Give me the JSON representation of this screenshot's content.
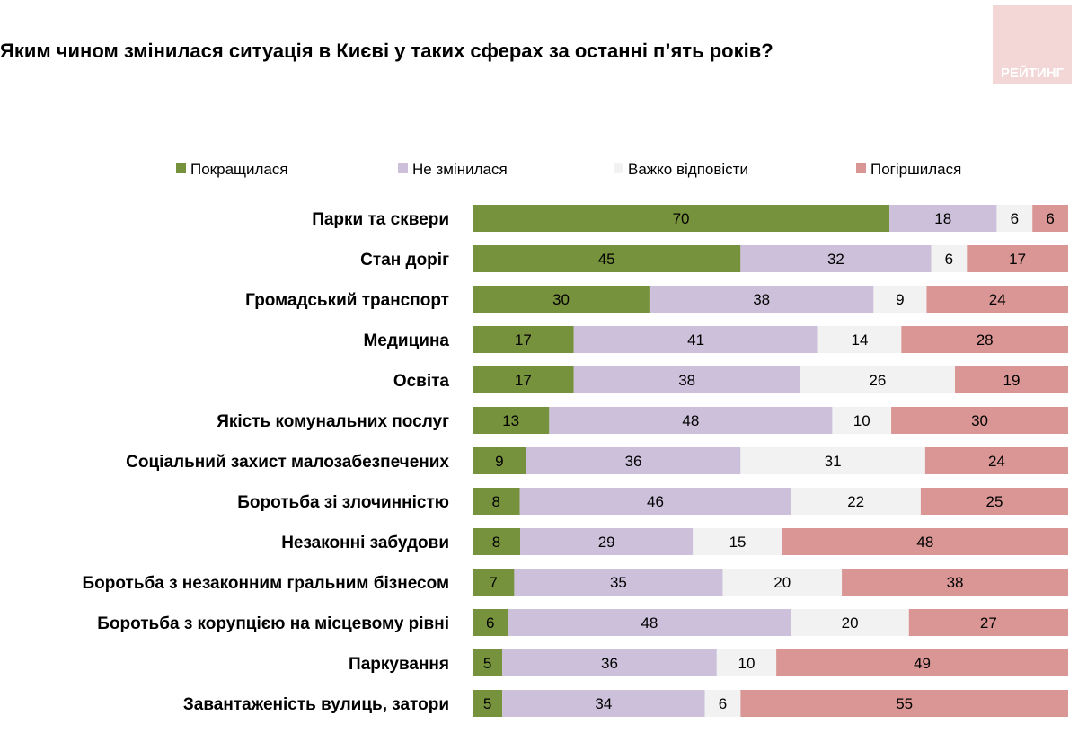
{
  "chart_data": {
    "type": "bar",
    "orientation": "horizontal",
    "stacked": true,
    "title": "Яким чином змінилася ситуація в Києві у таких сферах за останні п’ять років?",
    "categories": [
      "Парки та сквери",
      "Стан доріг",
      "Громадський транспорт",
      "Медицина",
      "Освіта",
      "Якість комунальних послуг",
      "Соціальний захист малозабезпечених",
      "Боротьба зі злочинністю",
      "Незаконні забудови",
      "Боротьба з незаконним гральним бізнесом",
      "Боротьба з корупцією на місцевому рівні",
      "Паркування",
      "Завантаженість вулиць, затори"
    ],
    "series": [
      {
        "name": "Покращилася",
        "color": "#77923C",
        "values": [
          70,
          45,
          30,
          17,
          17,
          13,
          9,
          8,
          8,
          7,
          6,
          5,
          5
        ]
      },
      {
        "name": "Не змінилася",
        "color": "#CCC0DA",
        "values": [
          18,
          32,
          38,
          41,
          38,
          48,
          36,
          46,
          29,
          35,
          48,
          36,
          34
        ]
      },
      {
        "name": "Важко відповісти",
        "color": "#F2F2F2",
        "values": [
          6,
          6,
          9,
          14,
          26,
          10,
          31,
          22,
          15,
          20,
          20,
          10,
          6
        ]
      },
      {
        "name": "Погіршилася",
        "color": "#D99694",
        "values": [
          6,
          17,
          24,
          28,
          19,
          30,
          24,
          25,
          48,
          38,
          27,
          49,
          55
        ]
      }
    ],
    "legend_position": "top",
    "grid": false
  },
  "logo_text": "РЕЙТИНГ"
}
